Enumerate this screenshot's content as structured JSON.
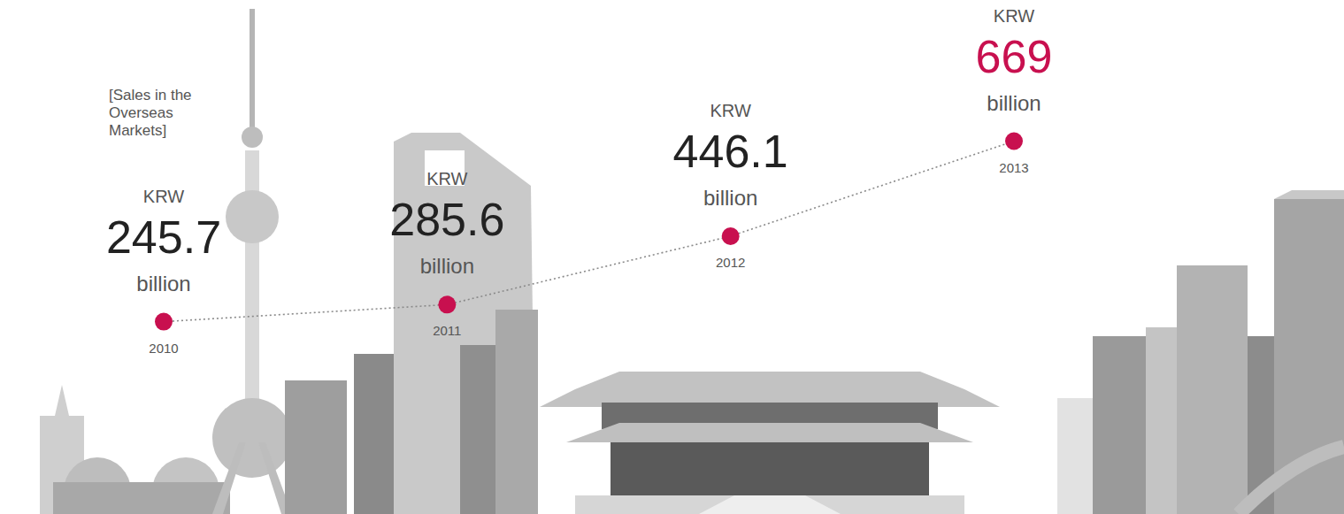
{
  "chart_data": {
    "type": "line",
    "title": "[Sales in the Overseas Markets]",
    "categories": [
      "2010",
      "2011",
      "2012",
      "2013"
    ],
    "values": [
      245.7,
      285.6,
      446.1,
      669
    ],
    "value_labels": [
      "KRW 245.7 billion",
      "KRW 285.6 billion",
      "KRW 446.1 billion",
      "KRW 669 billion"
    ],
    "data_labels": true,
    "color": "#c8104f",
    "marker": "circle",
    "line_style": "dotted",
    "ylim": [
      0,
      1000
    ],
    "tick_labels": "x",
    "grid": false
  }
}
